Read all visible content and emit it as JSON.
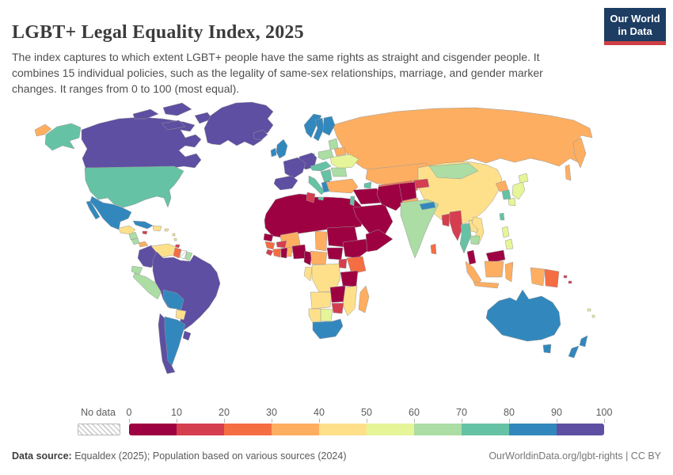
{
  "header": {
    "title": "LGBT+ Legal Equality Index, 2025",
    "subtitle": "The index captures to which extent LGBT+ people have the same rights as straight and cisgender people. It combines 15 individual policies, such as the legality of same-sex relationships, marriage, and gender marker changes. It ranges from 0 to 100 (most equal).",
    "logo": {
      "line1": "Our World",
      "line2": "in Data",
      "bg_color": "#1d3d63",
      "accent_color": "#cd3e45"
    }
  },
  "legend": {
    "no_data_label": "No data",
    "ticks": [
      "0",
      "10",
      "20",
      "30",
      "40",
      "50",
      "60",
      "70",
      "80",
      "90",
      "100"
    ],
    "bins": [
      {
        "range": "0-10",
        "color": "#9e0142"
      },
      {
        "range": "10-20",
        "color": "#d53e4f"
      },
      {
        "range": "20-30",
        "color": "#f46d43"
      },
      {
        "range": "30-40",
        "color": "#fdae61"
      },
      {
        "range": "40-50",
        "color": "#fee08b"
      },
      {
        "range": "50-60",
        "color": "#e6f598"
      },
      {
        "range": "60-70",
        "color": "#abdda4"
      },
      {
        "range": "70-80",
        "color": "#66c2a5"
      },
      {
        "range": "80-90",
        "color": "#3288bd"
      },
      {
        "range": "90-100",
        "color": "#5e4fa2"
      }
    ]
  },
  "footer": {
    "source_label": "Data source:",
    "source_text": " Equaldex (2025); Population based on various sources (2024)",
    "credit": "OurWorldinData.org/lgbt-rights | CC BY"
  },
  "chart_data": {
    "type": "choropleth",
    "title": "LGBT+ Legal Equality Index, 2025",
    "value_range": [
      0,
      100
    ],
    "regions": [
      {
        "id": "russia",
        "name": "Russia",
        "bin": "30-40"
      },
      {
        "id": "kazakhstan",
        "name": "Kazakhstan",
        "bin": "30-40"
      },
      {
        "id": "china",
        "name": "China",
        "bin": "40-50"
      },
      {
        "id": "mongolia",
        "name": "Mongolia",
        "bin": "60-70"
      },
      {
        "id": "north-africa",
        "name": "Morocco, Algeria, Libya, Egypt, Mauritania",
        "bin": "0-10"
      },
      {
        "id": "canada",
        "name": "Canada",
        "bin": "90-100"
      },
      {
        "id": "united-states",
        "name": "United States",
        "bin": "70-80"
      },
      {
        "id": "greenland",
        "name": "Greenland",
        "bin": "90-100"
      },
      {
        "id": "iceland",
        "name": "Iceland",
        "bin": "90-100"
      },
      {
        "id": "mexico",
        "name": "Mexico",
        "bin": "80-90"
      },
      {
        "id": "guatemala-honduras",
        "name": "Guatemala & Honduras",
        "bin": "40-50"
      },
      {
        "id": "nicaragua",
        "name": "Nicaragua",
        "bin": "60-70"
      },
      {
        "id": "costa-rica",
        "name": "Costa Rica",
        "bin": "60-70"
      },
      {
        "id": "panama",
        "name": "Panama",
        "bin": "30-40"
      },
      {
        "id": "cuba",
        "name": "Cuba",
        "bin": "80-90"
      },
      {
        "id": "jamaica",
        "name": "Jamaica",
        "bin": "10-20"
      },
      {
        "id": "hispaniola",
        "name": "Haiti & Dominican Republic",
        "bin": "40-50"
      },
      {
        "id": "puerto-rico",
        "name": "Puerto Rico",
        "bin": "40-50"
      },
      {
        "id": "lesser-antilles",
        "name": "Lesser Antilles",
        "bin": "40-50"
      },
      {
        "id": "trinidad-tobago",
        "name": "Trinidad and Tobago",
        "bin": "10-20"
      },
      {
        "id": "colombia",
        "name": "Colombia",
        "bin": "90-100"
      },
      {
        "id": "venezuela",
        "name": "Venezuela",
        "bin": "40-50"
      },
      {
        "id": "guyana",
        "name": "Guyana",
        "bin": "20-30"
      },
      {
        "id": "suriname",
        "name": "Suriname",
        "bin": null
      },
      {
        "id": "french-guiana",
        "name": "French Guiana",
        "bin": "60-70"
      },
      {
        "id": "ecuador",
        "name": "Ecuador",
        "bin": "60-70"
      },
      {
        "id": "peru",
        "name": "Peru",
        "bin": "60-70"
      },
      {
        "id": "brazil",
        "name": "Brazil",
        "bin": "90-100"
      },
      {
        "id": "bolivia",
        "name": "Bolivia",
        "bin": "80-90"
      },
      {
        "id": "paraguay",
        "name": "Paraguay",
        "bin": "40-50"
      },
      {
        "id": "chile",
        "name": "Chile",
        "bin": "90-100"
      },
      {
        "id": "argentina",
        "name": "Argentina",
        "bin": "80-90"
      },
      {
        "id": "uruguay",
        "name": "Uruguay",
        "bin": "90-100"
      },
      {
        "id": "united-kingdom",
        "name": "United Kingdom",
        "bin": "80-90"
      },
      {
        "id": "ireland",
        "name": "Ireland",
        "bin": "80-90"
      },
      {
        "id": "norway",
        "name": "Norway",
        "bin": "80-90"
      },
      {
        "id": "sweden",
        "name": "Sweden",
        "bin": "80-90"
      },
      {
        "id": "finland",
        "name": "Finland",
        "bin": "80-90"
      },
      {
        "id": "denmark",
        "name": "Denmark",
        "bin": "90-100"
      },
      {
        "id": "germany",
        "name": "Germany & Benelux",
        "bin": "90-100"
      },
      {
        "id": "france",
        "name": "France",
        "bin": "90-100"
      },
      {
        "id": "spain-portugal",
        "name": "Spain & Portugal",
        "bin": "90-100"
      },
      {
        "id": "italy",
        "name": "Italy",
        "bin": "70-80"
      },
      {
        "id": "alpine-central-europe",
        "name": "Switzerland, Austria, Czechia, Hungary",
        "bin": "70-80"
      },
      {
        "id": "poland",
        "name": "Poland",
        "bin": "60-70"
      },
      {
        "id": "baltics",
        "name": "Baltic states",
        "bin": "60-70"
      },
      {
        "id": "belarus",
        "name": "Belarus",
        "bin": "30-40"
      },
      {
        "id": "ukraine",
        "name": "Ukraine",
        "bin": "50-60"
      },
      {
        "id": "romania-bulgaria",
        "name": "Romania & Bulgaria",
        "bin": "60-70"
      },
      {
        "id": "balkans",
        "name": "Western Balkans",
        "bin": "70-80"
      },
      {
        "id": "greece",
        "name": "Greece",
        "bin": "80-90"
      },
      {
        "id": "turkey",
        "name": "Turkey",
        "bin": "30-40"
      },
      {
        "id": "caucasus",
        "name": "Caucasus",
        "bin": "70-80"
      },
      {
        "id": "central-asia",
        "name": "Turkmenistan & Uzbekistan",
        "bin": "20-30"
      },
      {
        "id": "kyrgyzstan-tajikistan",
        "name": "Kyrgyzstan & Tajikistan",
        "bin": "10-20"
      },
      {
        "id": "syria-iraq",
        "name": "Syria & Iraq",
        "bin": "0-10"
      },
      {
        "id": "israel-lebanon",
        "name": "Israel",
        "bin": "70-80"
      },
      {
        "id": "saudi-arabia-peninsula",
        "name": "Saudi Arabia, Yemen, Oman, UAE",
        "bin": "0-10"
      },
      {
        "id": "iran",
        "name": "Iran",
        "bin": "0-10"
      },
      {
        "id": "afghanistan",
        "name": "Afghanistan",
        "bin": "0-10"
      },
      {
        "id": "pakistan",
        "name": "Pakistan",
        "bin": "30-40"
      },
      {
        "id": "india",
        "name": "India",
        "bin": "60-70"
      },
      {
        "id": "nepal",
        "name": "Nepal",
        "bin": "80-90"
      },
      {
        "id": "bangladesh",
        "name": "Bangladesh",
        "bin": "10-20"
      },
      {
        "id": "sri-lanka",
        "name": "Sri Lanka",
        "bin": "20-30"
      },
      {
        "id": "myanmar",
        "name": "Myanmar",
        "bin": "10-20"
      },
      {
        "id": "thailand",
        "name": "Thailand",
        "bin": "70-80"
      },
      {
        "id": "laos",
        "name": "Laos",
        "bin": "40-50"
      },
      {
        "id": "vietnam",
        "name": "Vietnam",
        "bin": "40-50"
      },
      {
        "id": "cambodia",
        "name": "Cambodia",
        "bin": "60-70"
      },
      {
        "id": "north-korea",
        "name": "North Korea",
        "bin": "30-40"
      },
      {
        "id": "south-korea",
        "name": "South Korea",
        "bin": "70-80"
      },
      {
        "id": "japan",
        "name": "Japan",
        "bin": "50-60"
      },
      {
        "id": "taiwan",
        "name": "Taiwan",
        "bin": "70-80"
      },
      {
        "id": "philippines",
        "name": "Philippines",
        "bin": "50-60"
      },
      {
        "id": "malaysia",
        "name": "Malaysia",
        "bin": "0-10"
      },
      {
        "id": "indonesia",
        "name": "Indonesia",
        "bin": "30-40"
      },
      {
        "id": "papua-new-guinea",
        "name": "Papua New Guinea",
        "bin": "20-30"
      },
      {
        "id": "solomon-islands",
        "name": "Solomon Islands",
        "bin": "10-20"
      },
      {
        "id": "pacific-islands",
        "name": "Pacific islands",
        "bin": "50-60"
      },
      {
        "id": "australia",
        "name": "Australia",
        "bin": "80-90"
      },
      {
        "id": "new-zealand",
        "name": "New Zealand",
        "bin": "80-90"
      },
      {
        "id": "tunisia",
        "name": "Tunisia",
        "bin": "10-20"
      },
      {
        "id": "mali",
        "name": "Mali",
        "bin": "30-40"
      },
      {
        "id": "chad",
        "name": "Chad",
        "bin": "30-40"
      },
      {
        "id": "sudan",
        "name": "Sudan",
        "bin": "0-10"
      },
      {
        "id": "senegal",
        "name": "Senegal",
        "bin": "0-10"
      },
      {
        "id": "guinea",
        "name": "Guinea",
        "bin": "20-30"
      },
      {
        "id": "sierra-leone-liberia",
        "name": "Sierra Leone & Liberia",
        "bin": "10-20"
      },
      {
        "id": "ivory-coast",
        "name": "Côte d'Ivoire",
        "bin": "20-30"
      },
      {
        "id": "ghana",
        "name": "Ghana",
        "bin": "0-10"
      },
      {
        "id": "togo-benin",
        "name": "Togo & Benin",
        "bin": "30-40"
      },
      {
        "id": "burkina-faso",
        "name": "Burkina Faso",
        "bin": "10-20"
      },
      {
        "id": "nigeria",
        "name": "Nigeria",
        "bin": "0-10"
      },
      {
        "id": "cameroon",
        "name": "Cameroon",
        "bin": "0-10"
      },
      {
        "id": "central-african-republic",
        "name": "Central African Republic",
        "bin": "30-40"
      },
      {
        "id": "south-sudan",
        "name": "South Sudan",
        "bin": "0-10"
      },
      {
        "id": "ethiopia",
        "name": "Ethiopia",
        "bin": "0-10"
      },
      {
        "id": "somalia",
        "name": "Somalia",
        "bin": "0-10"
      },
      {
        "id": "kenya",
        "name": "Kenya",
        "bin": "20-30"
      },
      {
        "id": "uganda",
        "name": "Uganda",
        "bin": "10-20"
      },
      {
        "id": "tanzania",
        "name": "Tanzania",
        "bin": "0-10"
      },
      {
        "id": "drc",
        "name": "Democratic Republic of Congo",
        "bin": "40-50"
      },
      {
        "id": "congo-gabon",
        "name": "Congo & Gabon",
        "bin": "40-50"
      },
      {
        "id": "angola",
        "name": "Angola",
        "bin": "40-50"
      },
      {
        "id": "zambia",
        "name": "Zambia",
        "bin": "0-10"
      },
      {
        "id": "malawi-mozambique",
        "name": "Malawi & Mozambique",
        "bin": "40-50"
      },
      {
        "id": "zimbabwe",
        "name": "Zimbabwe",
        "bin": "10-20"
      },
      {
        "id": "botswana",
        "name": "Botswana",
        "bin": "50-60"
      },
      {
        "id": "namibia",
        "name": "Namibia",
        "bin": "40-50"
      },
      {
        "id": "south-africa",
        "name": "South Africa",
        "bin": "80-90"
      },
      {
        "id": "madagascar",
        "name": "Madagascar",
        "bin": "30-40"
      }
    ]
  }
}
